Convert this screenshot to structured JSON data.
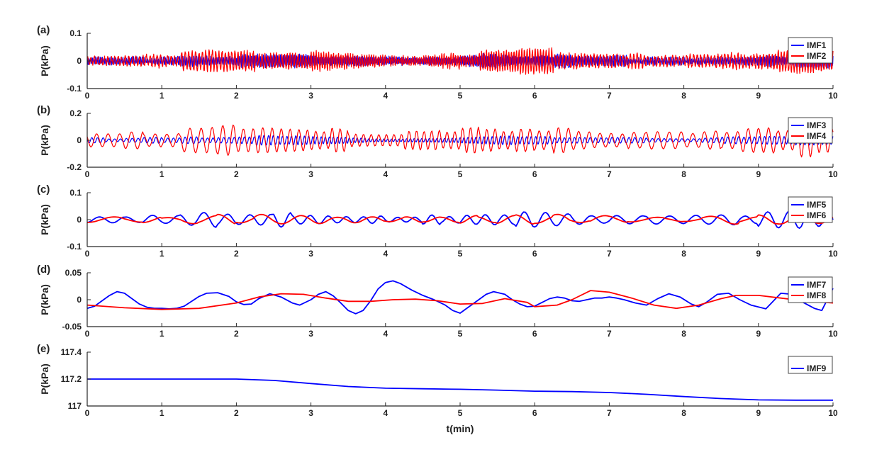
{
  "colors": {
    "blue": "#0000ff",
    "red": "#ff0000"
  },
  "xlabel": "t(min)",
  "chart_data": [
    {
      "type": "line",
      "panel_label": "(a)",
      "ylabel": "P(kPa)",
      "xlim": [
        0,
        10
      ],
      "ylim": [
        -0.1,
        0.1
      ],
      "xticks": [
        "0",
        "1",
        "2",
        "3",
        "4",
        "5",
        "6",
        "7",
        "8",
        "9",
        "10"
      ],
      "yticks": [
        "-0.1",
        "0",
        "0.1"
      ],
      "legend_position": "top-right",
      "series": [
        {
          "name": "IMF1",
          "color": "#0000ff",
          "amplitude": 0.025,
          "description_frequency_cycles_per_min": 60
        },
        {
          "name": "IMF2",
          "color": "#ff0000",
          "amplitude": 0.04,
          "description_frequency_cycles_per_min": 30
        }
      ]
    },
    {
      "type": "line",
      "panel_label": "(b)",
      "ylabel": "P(kPa)",
      "xlim": [
        0,
        10
      ],
      "ylim": [
        -0.2,
        0.2
      ],
      "xticks": [
        "0",
        "1",
        "2",
        "3",
        "4",
        "5",
        "6",
        "7",
        "8",
        "9",
        "10"
      ],
      "yticks": [
        "-0.2",
        "0",
        "0.2"
      ],
      "legend_position": "top-right",
      "series": [
        {
          "name": "IMF3",
          "color": "#0000ff",
          "amplitude": 0.035,
          "description_frequency_cycles_per_min": 18
        },
        {
          "name": "IMF4",
          "color": "#ff0000",
          "amplitude": 0.12,
          "description_frequency_cycles_per_min": 9
        }
      ]
    },
    {
      "type": "line",
      "panel_label": "(c)",
      "ylabel": "P(kPa)",
      "xlim": [
        0,
        10
      ],
      "ylim": [
        -0.1,
        0.1
      ],
      "xticks": [
        "0",
        "1",
        "2",
        "3",
        "4",
        "5",
        "6",
        "7",
        "8",
        "9",
        "10"
      ],
      "yticks": [
        "-0.1",
        "0",
        "0.1"
      ],
      "legend_position": "top-right",
      "series": [
        {
          "name": "IMF5",
          "color": "#0000ff",
          "amplitude": 0.03,
          "description_frequency_cycles_per_min": 4
        },
        {
          "name": "IMF6",
          "color": "#ff0000",
          "amplitude": 0.02,
          "description_frequency_cycles_per_min": 2
        }
      ]
    },
    {
      "type": "line",
      "panel_label": "(d)",
      "ylabel": "P(kPa)",
      "xlim": [
        0,
        10
      ],
      "ylim": [
        -0.05,
        0.05
      ],
      "xticks": [
        "0",
        "1",
        "2",
        "3",
        "4",
        "5",
        "6",
        "7",
        "8",
        "9",
        "10"
      ],
      "yticks": [
        "-0.05",
        "0",
        "0.05"
      ],
      "legend_position": "top-right",
      "series": [
        {
          "name": "IMF7",
          "color": "#0000ff",
          "x": [
            0,
            0.1,
            0.2,
            0.3,
            0.4,
            0.5,
            0.6,
            0.7,
            0.8,
            0.9,
            1.0,
            1.1,
            1.2,
            1.3,
            1.4,
            1.5,
            1.6,
            1.75,
            1.9,
            2.0,
            2.1,
            2.2,
            2.3,
            2.45,
            2.6,
            2.75,
            2.85,
            3.0,
            3.1,
            3.2,
            3.3,
            3.4,
            3.5,
            3.6,
            3.7,
            3.8,
            3.9,
            4.0,
            4.1,
            4.2,
            4.35,
            4.5,
            4.65,
            4.8,
            4.9,
            5.0,
            5.1,
            5.25,
            5.35,
            5.45,
            5.6,
            5.7,
            5.8,
            5.9,
            6.0,
            6.1,
            6.2,
            6.3,
            6.4,
            6.5,
            6.6,
            6.7,
            6.8,
            6.9,
            7.0,
            7.1,
            7.2,
            7.35,
            7.5,
            7.65,
            7.8,
            7.95,
            8.1,
            8.2,
            8.3,
            8.45,
            8.6,
            8.75,
            8.9,
            9.1,
            9.3,
            9.45,
            9.6,
            9.75,
            9.85,
            10.0
          ],
          "y": [
            -0.016,
            -0.012,
            -0.002,
            0.008,
            0.015,
            0.012,
            0.002,
            -0.008,
            -0.014,
            -0.016,
            -0.016,
            -0.017,
            -0.016,
            -0.012,
            -0.003,
            0.006,
            0.012,
            0.013,
            0.006,
            -0.004,
            -0.009,
            -0.008,
            0.002,
            0.011,
            0.005,
            -0.006,
            -0.01,
            0.0,
            0.01,
            0.015,
            0.007,
            -0.006,
            -0.02,
            -0.026,
            -0.02,
            -0.002,
            0.02,
            0.032,
            0.035,
            0.03,
            0.018,
            0.008,
            0.0,
            -0.01,
            -0.02,
            -0.025,
            -0.015,
            0.0,
            0.01,
            0.015,
            0.01,
            0.0,
            -0.008,
            -0.013,
            -0.012,
            -0.005,
            0.002,
            0.005,
            0.003,
            -0.002,
            -0.003,
            0.0,
            0.003,
            0.003,
            0.005,
            0.003,
            0.0,
            -0.006,
            -0.01,
            0.002,
            0.011,
            0.005,
            -0.008,
            -0.013,
            -0.005,
            0.01,
            0.012,
            0.0,
            -0.01,
            -0.017,
            0.012,
            0.01,
            -0.005,
            -0.016,
            -0.02,
            0.021
          ]
        },
        {
          "name": "IMF8",
          "color": "#ff0000",
          "x": [
            0,
            0.5,
            1.0,
            1.5,
            2.0,
            2.3,
            2.6,
            2.9,
            3.2,
            3.5,
            3.8,
            4.1,
            4.4,
            4.7,
            5.0,
            5.3,
            5.6,
            5.9,
            6.0,
            6.3,
            6.5,
            6.75,
            7.0,
            7.3,
            7.6,
            7.9,
            8.2,
            8.5,
            8.7,
            9.0,
            9.3,
            9.6,
            9.8,
            10.0
          ],
          "y": [
            -0.01,
            -0.015,
            -0.018,
            -0.016,
            -0.006,
            0.005,
            0.011,
            0.01,
            0.003,
            -0.003,
            -0.003,
            0.0,
            0.001,
            -0.002,
            -0.008,
            -0.007,
            0.002,
            -0.005,
            -0.013,
            -0.01,
            0.0,
            0.017,
            0.014,
            0.003,
            -0.01,
            -0.016,
            -0.01,
            0.002,
            0.008,
            0.008,
            0.003,
            -0.002,
            -0.004,
            -0.006
          ]
        }
      ]
    },
    {
      "type": "line",
      "panel_label": "(e)",
      "ylabel": "P(kPa)",
      "xlim": [
        0,
        10
      ],
      "ylim": [
        117,
        117.4
      ],
      "xticks": [
        "0",
        "1",
        "2",
        "3",
        "4",
        "5",
        "6",
        "7",
        "8",
        "9",
        "10"
      ],
      "yticks": [
        "117",
        "117.2",
        "117.4"
      ],
      "legend_position": "top-right",
      "series": [
        {
          "name": "IMF9",
          "color": "#0000ff",
          "x": [
            0,
            0.5,
            1.0,
            1.5,
            2.0,
            2.5,
            3.0,
            3.5,
            4.0,
            4.5,
            5.0,
            5.5,
            6.0,
            6.5,
            7.0,
            7.5,
            8.0,
            8.5,
            9.0,
            9.5,
            10.0
          ],
          "y": [
            117.2,
            117.2,
            117.2,
            117.2,
            117.2,
            117.19,
            117.167,
            117.145,
            117.132,
            117.128,
            117.124,
            117.118,
            117.11,
            117.107,
            117.1,
            117.087,
            117.07,
            117.055,
            117.045,
            117.043,
            117.043
          ]
        }
      ]
    }
  ]
}
